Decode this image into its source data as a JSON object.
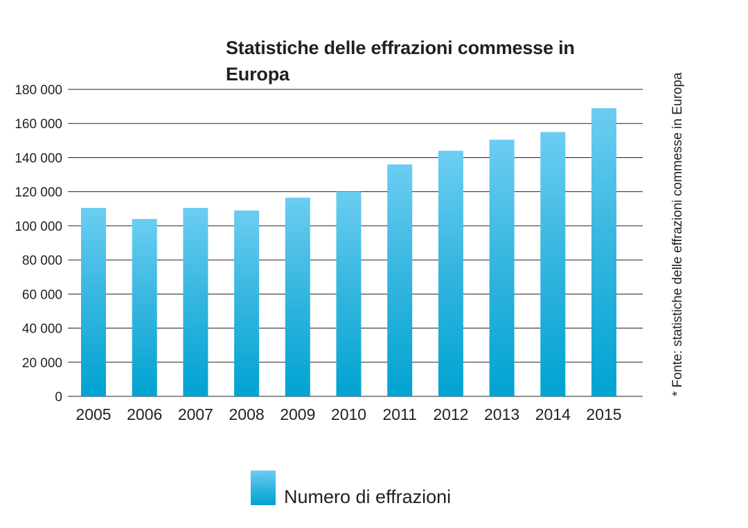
{
  "source_note": "* Fonte: statistiche delle effrazioni commesse in Europa",
  "chart_data": {
    "type": "bar",
    "title": "Statistiche delle effrazioni commesse in Europa",
    "xlabel": "",
    "ylabel": "",
    "categories": [
      "2005",
      "2006",
      "2007",
      "2008",
      "2009",
      "2010",
      "2011",
      "2012",
      "2013",
      "2014",
      "2015"
    ],
    "series": [
      {
        "name": "Numero di effrazioni",
        "values": [
          110500,
          104000,
          110500,
          109000,
          116500,
          120000,
          136000,
          144000,
          150500,
          155000,
          169000
        ]
      }
    ],
    "ylim": [
      0,
      180000
    ],
    "yticks": [
      "0",
      "20 000",
      "40 000",
      "60 000",
      "80 000",
      "100 000",
      "120 000",
      "140 000",
      "160 000",
      "180 000"
    ],
    "grid": true,
    "legend_position": "bottom-center",
    "colors": {
      "bar_top": "#6ccdf2",
      "bar_mid": "#38b7e0",
      "bar_bottom": "#00a3d1",
      "gridline": "#231f20",
      "text": "#231f20"
    }
  }
}
